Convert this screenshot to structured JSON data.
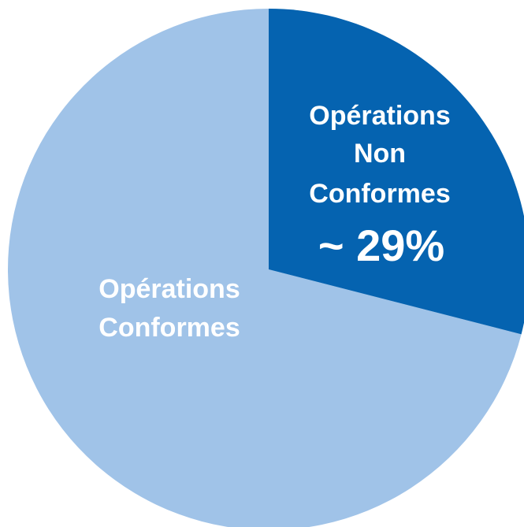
{
  "chart_data": {
    "type": "pie",
    "slices": [
      {
        "label_lines": [
          "Opérations",
          "Non",
          "Conformes"
        ],
        "value_text": "~ 29%",
        "value": 29,
        "color": "#0563B0"
      },
      {
        "label_lines": [
          "Opérations",
          "Conformes"
        ],
        "value": 71,
        "color": "#A0C3E8"
      }
    ],
    "start_angle": "12 o'clock",
    "direction": "clockwise"
  }
}
